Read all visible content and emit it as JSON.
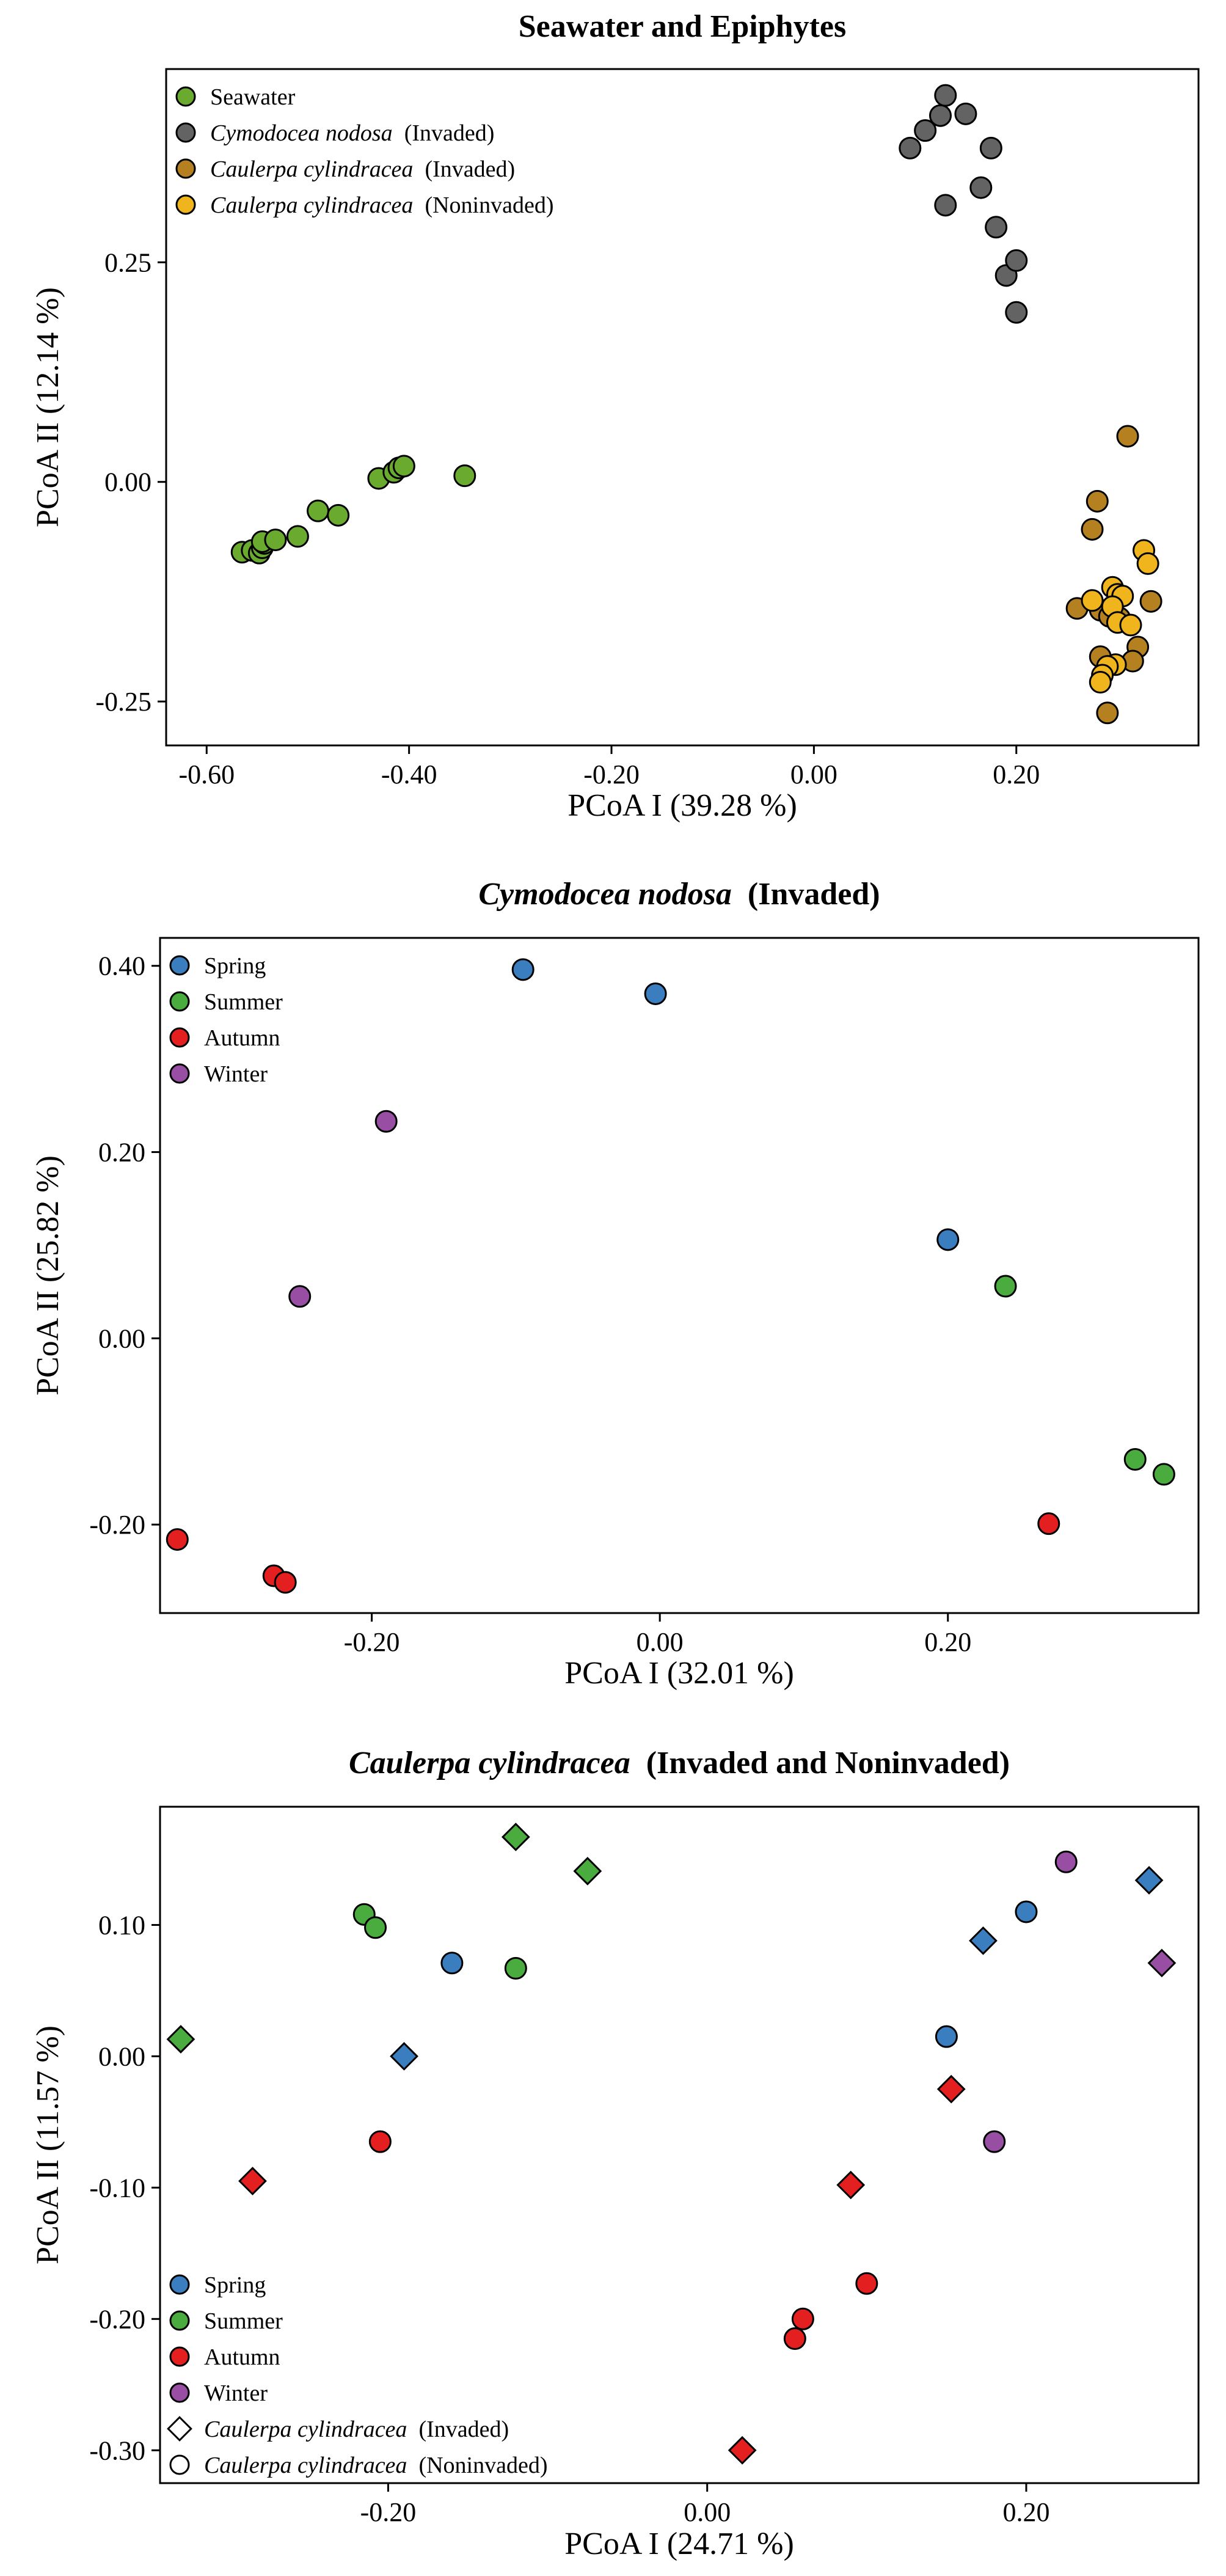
{
  "figure": {
    "panels_count": 3
  },
  "chart_data": [
    {
      "type": "scatter",
      "title": "Seawater and Epiphytes",
      "title_italic": "",
      "title_rest": "Seawater and Epiphytes",
      "xlabel": "PCoA I (39.28 %)",
      "ylabel": "PCoA II (12.14 %)",
      "xlim": [
        -0.64,
        0.38
      ],
      "ylim": [
        -0.3,
        0.47
      ],
      "xticks": [
        -0.6,
        -0.4,
        -0.2,
        0.0,
        0.2
      ],
      "xtick_labels": [
        "-0.60",
        "-0.40",
        "-0.20",
        "0.00",
        "0.20"
      ],
      "yticks": [
        -0.25,
        0.0,
        0.25
      ],
      "ytick_labels": [
        "-0.25",
        "0.00",
        "0.25"
      ],
      "grid": false,
      "legend_position": "top-left",
      "legend": [
        {
          "italic": "",
          "text": "Seawater",
          "color": "#6aaa2f",
          "marker": "circle"
        },
        {
          "italic": "Cymodocea nodosa",
          "text": "(Invaded)",
          "color": "#636363",
          "marker": "circle"
        },
        {
          "italic": "Caulerpa cylindracea",
          "text": "(Invaded)",
          "color": "#b5801f",
          "marker": "circle"
        },
        {
          "italic": "Caulerpa cylindracea",
          "text": "(Noninvaded)",
          "color": "#f0b51d",
          "marker": "circle"
        }
      ],
      "series": [
        {
          "legend": 0,
          "color": "#6aaa2f",
          "marker": "circle",
          "x": [
            -0.565,
            -0.555,
            -0.548,
            -0.545,
            -0.543,
            -0.545,
            -0.532,
            -0.51,
            -0.49,
            -0.47,
            -0.43,
            -0.415,
            -0.41,
            -0.405,
            -0.345
          ],
          "y": [
            -0.08,
            -0.078,
            -0.081,
            -0.075,
            -0.07,
            -0.068,
            -0.066,
            -0.062,
            -0.033,
            -0.038,
            0.004,
            0.011,
            0.016,
            0.018,
            0.007
          ]
        },
        {
          "legend": 1,
          "color": "#636363",
          "marker": "circle",
          "x": [
            0.095,
            0.11,
            0.125,
            0.13,
            0.15,
            0.165,
            0.175,
            0.18,
            0.13,
            0.19,
            0.2,
            0.2
          ],
          "y": [
            0.38,
            0.4,
            0.417,
            0.44,
            0.419,
            0.335,
            0.38,
            0.29,
            0.315,
            0.235,
            0.252,
            0.193
          ]
        },
        {
          "legend": 2,
          "color": "#b5801f",
          "marker": "circle",
          "x": [
            0.31,
            0.28,
            0.275,
            0.26,
            0.283,
            0.292,
            0.302,
            0.32,
            0.315,
            0.333,
            0.283,
            0.29
          ],
          "y": [
            0.052,
            -0.022,
            -0.054,
            -0.144,
            -0.146,
            -0.153,
            -0.155,
            -0.188,
            -0.204,
            -0.136,
            -0.199,
            -0.263
          ]
        },
        {
          "legend": 3,
          "color": "#f0b51d",
          "marker": "circle",
          "x": [
            0.326,
            0.33,
            0.295,
            0.3,
            0.275,
            0.305,
            0.295,
            0.3,
            0.313,
            0.298,
            0.29,
            0.285,
            0.283
          ],
          "y": [
            -0.078,
            -0.093,
            -0.12,
            -0.128,
            -0.135,
            -0.13,
            -0.142,
            -0.16,
            -0.163,
            -0.208,
            -0.21,
            -0.22,
            -0.228
          ]
        }
      ]
    },
    {
      "type": "scatter",
      "title": "Cymodocea nodosa (Invaded)",
      "title_italic": "Cymodocea nodosa",
      "title_rest": "(Invaded)",
      "xlabel": "PCoA I (32.01 %)",
      "ylabel": "PCoA II (25.82 %)",
      "xlim": [
        -0.347,
        0.374
      ],
      "ylim": [
        -0.295,
        0.43
      ],
      "xticks": [
        -0.2,
        0.0,
        0.2
      ],
      "xtick_labels": [
        "-0.20",
        "0.00",
        "0.20"
      ],
      "yticks": [
        -0.2,
        0.0,
        0.2,
        0.4
      ],
      "ytick_labels": [
        "-0.20",
        "0.00",
        "0.20",
        "0.40"
      ],
      "grid": false,
      "legend_position": "top-left",
      "legend": [
        {
          "italic": "",
          "text": "Spring",
          "color": "#3a7ebf",
          "marker": "circle"
        },
        {
          "italic": "",
          "text": "Summer",
          "color": "#4aab3e",
          "marker": "circle"
        },
        {
          "italic": "",
          "text": "Autumn",
          "color": "#e31f1f",
          "marker": "circle"
        },
        {
          "italic": "",
          "text": "Winter",
          "color": "#984ea3",
          "marker": "circle"
        }
      ],
      "series": [
        {
          "legend": 0,
          "color": "#3a7ebf",
          "marker": "circle",
          "x": [
            -0.095,
            -0.003,
            0.2
          ],
          "y": [
            0.396,
            0.37,
            0.106
          ]
        },
        {
          "legend": 1,
          "color": "#4aab3e",
          "marker": "circle",
          "x": [
            0.24,
            0.33,
            0.35
          ],
          "y": [
            0.056,
            -0.13,
            -0.146
          ]
        },
        {
          "legend": 2,
          "color": "#e31f1f",
          "marker": "circle",
          "x": [
            -0.335,
            -0.268,
            -0.26,
            0.27
          ],
          "y": [
            -0.216,
            -0.255,
            -0.262,
            -0.199
          ]
        },
        {
          "legend": 3,
          "color": "#984ea3",
          "marker": "circle",
          "x": [
            -0.19,
            -0.25
          ],
          "y": [
            0.233,
            0.045
          ]
        }
      ]
    },
    {
      "type": "scatter",
      "title": "Caulerpa cylindracea (Invaded and Noninvaded)",
      "title_italic": "Caulerpa cylindracea",
      "title_rest": "(Invaded and Noninvaded)",
      "xlabel": "PCoA I (24.71 %)",
      "ylabel": "PCoA II (11.57 %)",
      "xlim": [
        -0.343,
        0.308
      ],
      "ylim": [
        -0.325,
        0.19
      ],
      "xticks": [
        -0.2,
        0.0,
        0.2
      ],
      "xtick_labels": [
        "-0.20",
        "0.00",
        "0.20"
      ],
      "yticks": [
        -0.3,
        -0.2,
        -0.1,
        0.0,
        0.1
      ],
      "ytick_labels": [
        "-0.30",
        "-0.20",
        "-0.10",
        "0.00",
        "0.10"
      ],
      "grid": false,
      "legend_position": "bottom-left",
      "legend": [
        {
          "italic": "",
          "text": "Spring",
          "color": "#3a7ebf",
          "marker": "circle"
        },
        {
          "italic": "",
          "text": "Summer",
          "color": "#4aab3e",
          "marker": "circle"
        },
        {
          "italic": "",
          "text": "Autumn",
          "color": "#e31f1f",
          "marker": "circle"
        },
        {
          "italic": "",
          "text": "Winter",
          "color": "#984ea3",
          "marker": "circle"
        },
        {
          "italic": "Caulerpa cylindracea",
          "text": "(Invaded)",
          "color": "#ffffff",
          "marker": "diamond"
        },
        {
          "italic": "Caulerpa cylindracea",
          "text": "(Noninvaded)",
          "color": "#ffffff",
          "marker": "circle"
        }
      ],
      "series": [
        {
          "legend": 0,
          "color": "#3a7ebf",
          "marker": "circle",
          "x": [
            -0.16,
            0.2,
            0.15
          ],
          "y": [
            0.071,
            0.11,
            0.015
          ]
        },
        {
          "legend": 0,
          "color": "#3a7ebf",
          "marker": "diamond",
          "x": [
            -0.19,
            0.173,
            0.277
          ],
          "y": [
            0.0,
            0.088,
            0.134
          ]
        },
        {
          "legend": 1,
          "color": "#4aab3e",
          "marker": "circle",
          "x": [
            -0.215,
            -0.208,
            -0.12
          ],
          "y": [
            0.108,
            0.098,
            0.067
          ]
        },
        {
          "legend": 1,
          "color": "#4aab3e",
          "marker": "diamond",
          "x": [
            -0.12,
            -0.075,
            -0.33
          ],
          "y": [
            0.167,
            0.141,
            0.013
          ]
        },
        {
          "legend": 2,
          "color": "#e31f1f",
          "marker": "circle",
          "x": [
            -0.205,
            0.1,
            0.06,
            0.055
          ],
          "y": [
            -0.065,
            -0.173,
            -0.2,
            -0.215
          ]
        },
        {
          "legend": 2,
          "color": "#e31f1f",
          "marker": "diamond",
          "x": [
            -0.285,
            0.153,
            0.09,
            0.022
          ],
          "y": [
            -0.095,
            -0.025,
            -0.098,
            -0.3
          ]
        },
        {
          "legend": 3,
          "color": "#984ea3",
          "marker": "circle",
          "x": [
            0.225,
            0.18
          ],
          "y": [
            0.148,
            -0.065
          ]
        },
        {
          "legend": 3,
          "color": "#984ea3",
          "marker": "diamond",
          "x": [
            0.285
          ],
          "y": [
            0.071
          ]
        }
      ]
    }
  ]
}
